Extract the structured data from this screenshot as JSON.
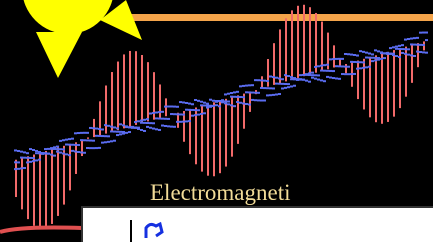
{
  "caption": "Electromagneti"
}
